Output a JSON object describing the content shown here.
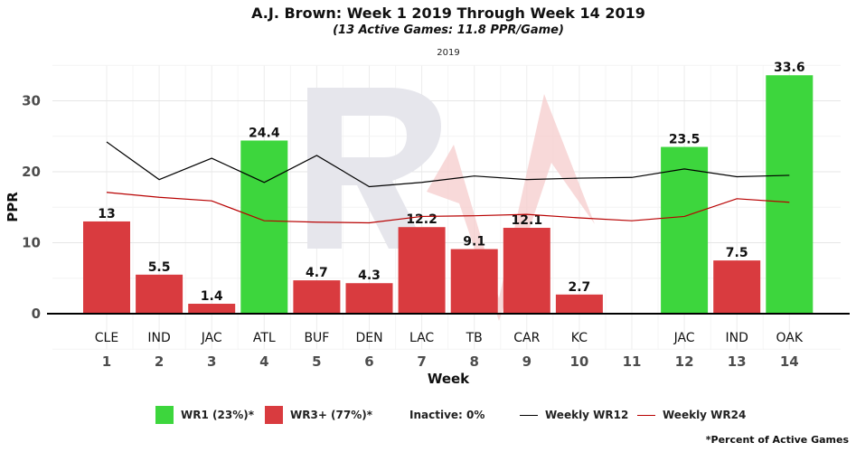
{
  "header": {
    "title": "A.J. Brown: Week 1 2019 Through Week 14 2019",
    "subtitle": "(13 Active Games: 11.8 PPR/Game)",
    "season": "2019"
  },
  "legend": {
    "wr1": "WR1 (23%)*",
    "wr3": "WR3+ (77%)*",
    "inactive": "Inactive: 0%",
    "wr12": "Weekly WR12",
    "wr24": "Weekly WR24"
  },
  "footnote": "*Percent of Active Games",
  "colors": {
    "wr1": "#3dd63d",
    "wr3": "#d93b3f",
    "wr12_line": "#000000",
    "wr24_line": "#b80000",
    "watermark_gray": "#e6e6ec",
    "watermark_red": "#f6cccc"
  },
  "chart_data": {
    "type": "bar",
    "xlabel": "Week",
    "ylabel": "PPR",
    "ylim": [
      -5,
      36
    ],
    "yticks": [
      0,
      10,
      20,
      30
    ],
    "weeks": [
      1,
      2,
      3,
      4,
      5,
      6,
      7,
      8,
      9,
      10,
      11,
      12,
      13,
      14
    ],
    "opponents": [
      "CLE",
      "IND",
      "JAC",
      "ATL",
      "BUF",
      "DEN",
      "LAC",
      "TB",
      "CAR",
      "KC",
      "",
      "JAC",
      "IND",
      "OAK"
    ],
    "values": [
      13,
      5.5,
      1.4,
      24.4,
      4.7,
      4.3,
      12.2,
      9.1,
      12.1,
      2.7,
      null,
      23.5,
      7.5,
      33.6
    ],
    "value_labels": [
      "13",
      "5.5",
      "1.4",
      "24.4",
      "4.7",
      "4.3",
      "12.2",
      "9.1",
      "12.1",
      "2.7",
      "",
      "23.5",
      "7.5",
      "33.6"
    ],
    "tiers": [
      "WR3+",
      "WR3+",
      "WR3+",
      "WR1",
      "WR3+",
      "WR3+",
      "WR3+",
      "WR3+",
      "WR3+",
      "WR3+",
      null,
      "WR1",
      "WR3+",
      "WR1"
    ],
    "series": [
      {
        "name": "Weekly WR12",
        "values": [
          24.2,
          18.9,
          21.9,
          18.5,
          22.3,
          17.9,
          18.5,
          19.4,
          18.9,
          19.1,
          19.2,
          20.4,
          19.3,
          19.5
        ]
      },
      {
        "name": "Weekly WR24",
        "values": [
          17.1,
          16.4,
          15.9,
          13.1,
          12.9,
          12.8,
          13.7,
          13.8,
          14.0,
          13.5,
          13.1,
          13.7,
          16.2,
          15.7
        ]
      }
    ],
    "grid": true,
    "legend_position": "bottom"
  }
}
